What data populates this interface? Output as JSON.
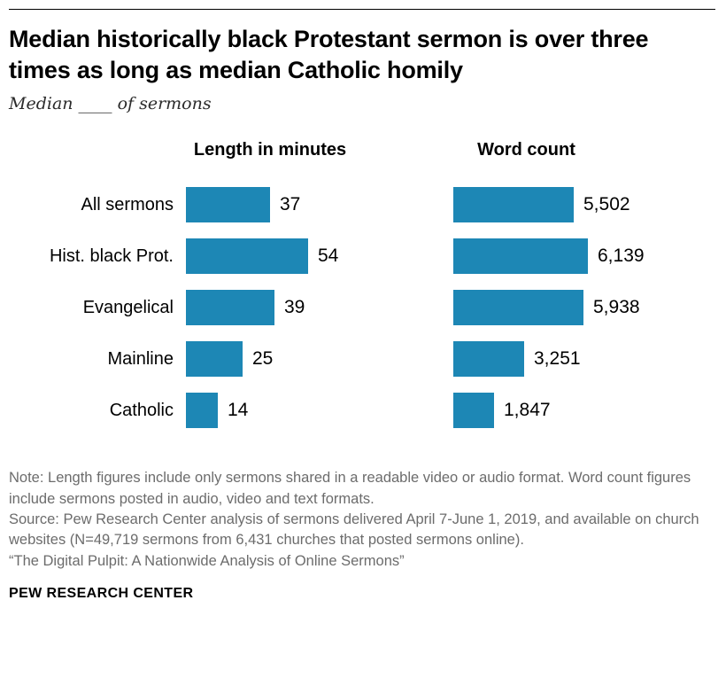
{
  "page": {
    "title": "Median historically black Protestant sermon is over three times as long as median Catholic homily",
    "subtitle": "Median ____ of sermons",
    "note": "Note: Length figures include only sermons shared in a readable video or audio format. Word count figures include sermons posted in audio, video and text formats.",
    "source": "Source: Pew Research Center analysis of sermons delivered April 7-June 1, 2019, and available on church websites (N=49,719 sermons from 6,431 churches that posted sermons online).",
    "citation": "“The Digital Pulpit: A Nationwide Analysis of Online Sermons”",
    "footer": "PEW RESEARCH CENTER"
  },
  "chart_data": {
    "type": "bar",
    "orientation": "horizontal",
    "title": "Median historically black Protestant sermon is over three times as long as median Catholic homily",
    "subtitle": "Median ____ of sermons",
    "categories": [
      "All sermons",
      "Hist. black Prot.",
      "Evangelical",
      "Mainline",
      "Catholic"
    ],
    "series": [
      {
        "name": "Length in minutes",
        "values": [
          37,
          54,
          39,
          25,
          14
        ],
        "value_labels": [
          "37",
          "54",
          "39",
          "25",
          "14"
        ],
        "max": 54
      },
      {
        "name": "Word count",
        "values": [
          5502,
          6139,
          5938,
          3251,
          1847
        ],
        "value_labels": [
          "5,502",
          "6,139",
          "5,938",
          "3,251",
          "1,847"
        ],
        "max": 6139
      }
    ],
    "bar_color": "#1d87b5",
    "grid": false,
    "legend_position": "none",
    "value_labels_shown": true
  }
}
